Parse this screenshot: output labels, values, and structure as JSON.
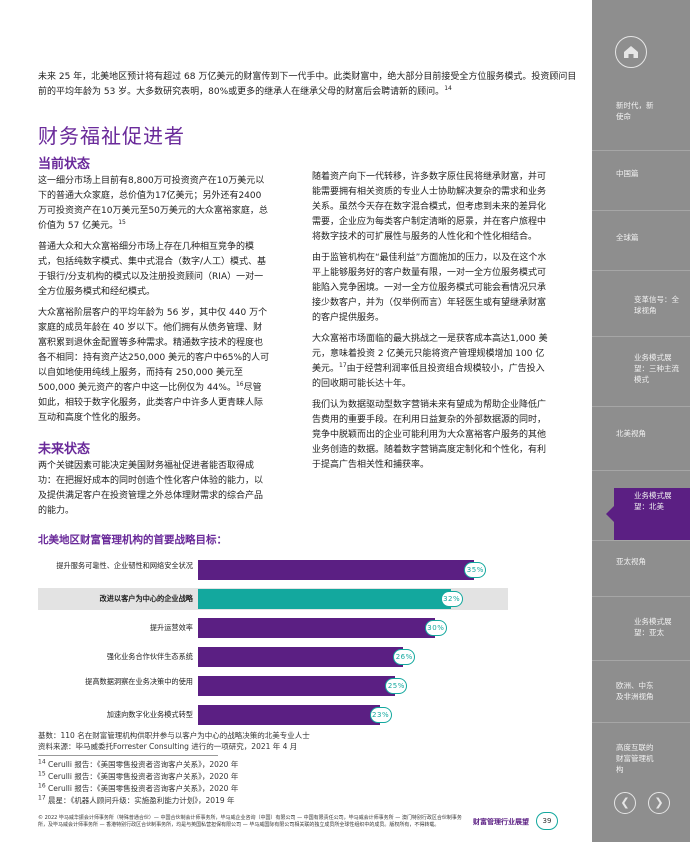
{
  "intro": {
    "text": "未来 25 年，北美地区预计将有超过 68 万亿美元的财富传到下一代手中。此类财富中，绝大部分目前接受全方位服务模式。投资顾问目前的平均年龄为 53 岁。大多数研究表明，80%或更多的继承人在继承父母的财富后会聘请新的顾问。",
    "fn": "14"
  },
  "section_title": "财务福祉促进者",
  "current": {
    "heading": "当前状态",
    "p1": "这一细分市场上目前有8,800万可投资资产在10万美元以下的普通大众家庭，总价值为17亿美元；另外还有2400万可投资资产在10万美元至50万美元的大众富裕家庭，总价值为 57 亿美元。",
    "p1_fn": "15",
    "p2": "普通大众和大众富裕细分市场上存在几种相互竞争的模式，包括纯数字模式、集中式混合（数字/人工）模式、基于银行/分支机构的模式以及注册投资顾问（RIA）一对一全方位服务模式和经纪模式。",
    "p3a": "大众富裕阶层客户的平均年龄为 56 岁，其中仅 440 万个家庭的成员年龄在 40 岁以下。他们拥有从债务管理、财富积累到退休金配置等多种需求。精通数字技术的程度也各不相同：持有资产达250,000 美元的客户中65%的人可以自如地使用纯线上服务，而持有 250,000 美元至 500,000 美元资产的客户中这一比例仅为 44%。",
    "p3_fn": "16",
    "p3b": "尽管如此，相较于数字化服务，此类客户中许多人更青睐人际互动和高度个性化的服务。"
  },
  "future": {
    "heading": "未来状态",
    "p1": "两个关键因素可能决定美国财务福祉促进者能否取得成功：在把握好成本的同时创造个性化客户体验的能力，以及提供满足客户在投资管理之外总体理财需求的综合产品的能力。"
  },
  "right_col": {
    "p1": "随着资产向下一代转移，许多数字原住民将继承财富，并可能需要拥有相关资质的专业人士协助解决复杂的需求和业务关系。虽然今天存在数字混合模式，但考虑到未来的差异化需要，企业应为每类客户制定清晰的愿景，并在客户旅程中将数字技术的可扩展性与服务的人性化和个性化相结合。",
    "p2": "由于监管机构在“最佳利益”方面施加的压力，以及在这个水平上能够服务好的客户数量有限，一对一全方位服务模式可能陷入竞争困境。一对一全方位服务模式可能会看情况只承接少数客户，并为（仅举例而言）年轻医生或有望继承财富的客户提供服务。",
    "p3a": "大众富裕市场面临的最大挑战之一是获客成本高达1,000 美元，意味着投资 2 亿美元只能将资产管理规模增加 100 亿美元。",
    "p3_fn": "17",
    "p3b": "由于经营利润率低且投资组合规模较小，广告投入的回收期可能长达十年。",
    "p4": "我们认为数据驱动型数字营销未来有望成为帮助企业降低广告费用的重要手段。在利用日益复杂的外部数据源的同时，竞争中脱颖而出的企业可能利用为大众富裕客户服务的其他业务创造的数据。随着数字营销高度定制化和个性化，有利于提高广告相关性和捕获率。"
  },
  "chart_data": {
    "type": "bar",
    "orientation": "horizontal",
    "title": "北美地区财富管理机构的首要战略目标：",
    "categories": [
      "提升服务可靠性、企业韧性和网络安全状况",
      "改进以客户为中心的企业战略",
      "提升运营效率",
      "强化业务合作伙伴生态系统",
      "提高数据洞察在业务决策中的使用",
      "加速向数字化业务模式转型"
    ],
    "values": [
      35,
      32,
      30,
      26,
      25,
      23
    ],
    "value_labels": [
      "35%",
      "32%",
      "30%",
      "26%",
      "25%",
      "23%"
    ],
    "unit": "%",
    "highlight_index": 1,
    "colors": {
      "default": "#5b1f83",
      "highlight": "#13a89e",
      "badge_border": "#13a89e"
    },
    "xlim": [
      0,
      38
    ]
  },
  "notes": {
    "base": "基数：110 名在财富管理机构供职并参与以客户为中心的战略决策的北美专业人士",
    "source": "资料来源：毕马威委托Forrester Consulting 进行的一项研究，2021 年 4 月"
  },
  "footnotes": [
    {
      "num": "14",
      "text": "Cerulli 报告：《美国零售投资者咨询客户关系》，2020 年"
    },
    {
      "num": "15",
      "text": "Cerulli 报告：《美国零售投资者咨询客户关系》，2020 年"
    },
    {
      "num": "16",
      "text": "Cerulli 报告：《美国零售投资者咨询客户关系》，2020 年"
    },
    {
      "num": "17",
      "text": "晨星：《机器人顾问升级：实施盈利能力计划》，2019 年"
    }
  ],
  "legal": "© 2022 毕马威华振会计师事务所（特殊普通合伙）— 中国合伙制会计师事务所，毕马威企业咨询（中国）有限公司 — 中国有限责任公司，毕马威会计师事务所 — 澳门特别行政区合伙制事务所，及毕马威会计师事务所 — 香港特别行政区合伙制事务所，均是与英国私营担保有限公司 — 毕马威国际有限公司相关联的独立成员所全球性组织中的成员。版权所有，不得转载。",
  "footer": {
    "title": "财富管理行业展望",
    "page": "39"
  },
  "sidebar": {
    "home_icon": "home-icon",
    "items": [
      {
        "label": "新时代，新使命"
      },
      {
        "label": "中国篇"
      },
      {
        "label": "全球篇"
      },
      {
        "label": "变革信号：全球视角"
      },
      {
        "label": "业务模式展望：三种主流模式"
      },
      {
        "label": "北美视角"
      },
      {
        "label": "业务模式展望：北美"
      },
      {
        "label": "亚太视角"
      },
      {
        "label": "业务模式展望：亚太"
      },
      {
        "label": "欧洲、中东及非洲视角"
      },
      {
        "label": "高度互联的财富管理机构"
      }
    ],
    "prev_icon": "chevron-left-icon",
    "next_icon": "chevron-right-icon"
  }
}
